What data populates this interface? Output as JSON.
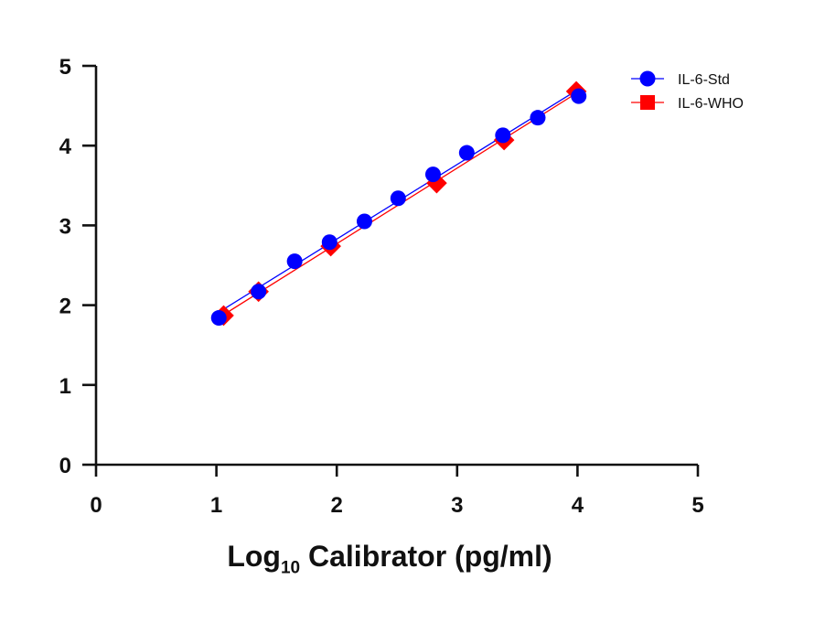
{
  "chart_data": {
    "type": "scatter",
    "xlabel_main": "Log",
    "xlabel_sub": "10",
    "xlabel_rest": " Calibrator (pg/ml)",
    "ylabel": "",
    "xlim": [
      0,
      5
    ],
    "ylim": [
      0,
      5
    ],
    "x_ticks": [
      "0",
      "1",
      "2",
      "3",
      "4",
      "5"
    ],
    "y_ticks": [
      "0",
      "1",
      "2",
      "3",
      "4",
      "5"
    ],
    "grid": false,
    "legend_position": "top-right",
    "series": [
      {
        "name": "IL-6-Std",
        "color": "#0000ff",
        "marker": "circle",
        "x": [
          1.02,
          1.35,
          1.65,
          1.94,
          2.23,
          2.51,
          2.8,
          3.08,
          3.38,
          3.67,
          4.01
        ],
        "y": [
          1.84,
          2.17,
          2.55,
          2.79,
          3.05,
          3.34,
          3.64,
          3.91,
          4.13,
          4.35,
          4.62
        ]
      },
      {
        "name": "IL-6-WHO",
        "color": "#ff0000",
        "marker": "square",
        "x": [
          1.06,
          1.35,
          1.95,
          2.83,
          3.39,
          3.99
        ],
        "y": [
          1.87,
          2.17,
          2.74,
          3.53,
          4.07,
          4.68
        ]
      }
    ]
  }
}
